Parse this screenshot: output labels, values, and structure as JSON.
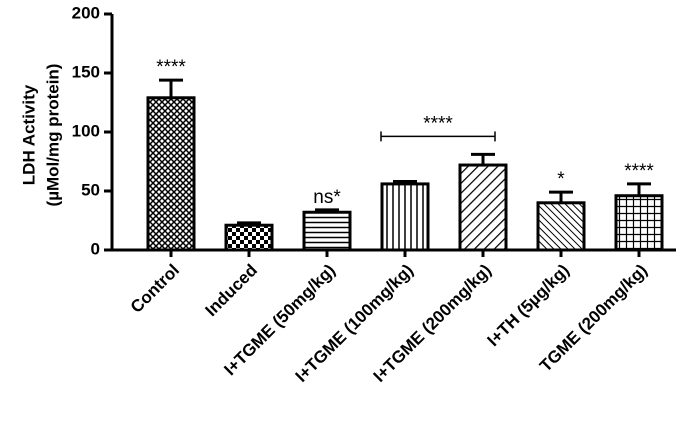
{
  "chart_data": {
    "type": "bar",
    "y_label": [
      "LDH Activity",
      "(µMol/mg protein)"
    ],
    "categories": [
      "Control",
      "Induced",
      "I+TGME (50mg/kg)",
      "I+TGME (100mg/kg)",
      "I+TGME (200mg/kg)",
      "I+TH (5µg/kg)",
      "TGME (200mg/kg)"
    ],
    "values": [
      129,
      21,
      32,
      56,
      72,
      40,
      46
    ],
    "errors": [
      15,
      2,
      2,
      2,
      9,
      9,
      10
    ],
    "annotations": [
      "****",
      null,
      "ns*",
      null,
      null,
      "*",
      "****"
    ],
    "bracket_label": "****",
    "color": "#000000",
    "ylim": [
      0,
      200
    ],
    "yticks": [
      0,
      50,
      100,
      150,
      200
    ],
    "grid": false
  }
}
